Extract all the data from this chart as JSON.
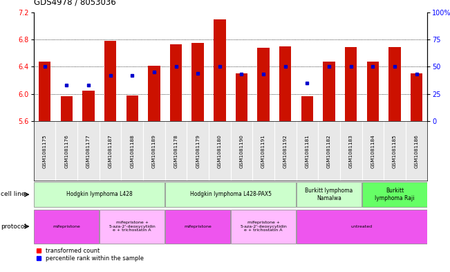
{
  "title": "GDS4978 / 8053036",
  "samples": [
    "GSM1081175",
    "GSM1081176",
    "GSM1081177",
    "GSM1081187",
    "GSM1081188",
    "GSM1081189",
    "GSM1081178",
    "GSM1081179",
    "GSM1081180",
    "GSM1081190",
    "GSM1081191",
    "GSM1081192",
    "GSM1081181",
    "GSM1081182",
    "GSM1081183",
    "GSM1081184",
    "GSM1081185",
    "GSM1081186"
  ],
  "transformed_count": [
    6.47,
    5.97,
    6.05,
    6.78,
    5.98,
    6.41,
    6.73,
    6.75,
    7.1,
    6.3,
    6.68,
    6.7,
    5.97,
    6.47,
    6.69,
    6.47,
    6.69,
    6.3
  ],
  "percentile_rank": [
    50,
    33,
    33,
    42,
    42,
    45,
    50,
    44,
    50,
    43,
    43,
    50,
    35,
    50,
    50,
    50,
    50,
    43
  ],
  "cell_line_groups": [
    {
      "label": "Hodgkin lymphoma L428",
      "start": 0,
      "end": 5,
      "color": "#ccffcc"
    },
    {
      "label": "Hodgkin lymphoma L428-PAX5",
      "start": 6,
      "end": 11,
      "color": "#ccffcc"
    },
    {
      "label": "Burkitt lymphoma\nNamalwa",
      "start": 12,
      "end": 14,
      "color": "#ccffcc"
    },
    {
      "label": "Burkitt\nlymphoma Raji",
      "start": 15,
      "end": 17,
      "color": "#66ff66"
    }
  ],
  "protocol_groups": [
    {
      "label": "mifepristone",
      "start": 0,
      "end": 2,
      "color": "#ee55ee"
    },
    {
      "label": "mifepristone +\n5-aza-2'-deoxycytidin\ne + trichostatin A",
      "start": 3,
      "end": 5,
      "color": "#ffbbff"
    },
    {
      "label": "mifepristone",
      "start": 6,
      "end": 8,
      "color": "#ee55ee"
    },
    {
      "label": "mifepristone +\n5-aza-2'-deoxycytidin\ne + trichostatin A",
      "start": 9,
      "end": 11,
      "color": "#ffbbff"
    },
    {
      "label": "untreated",
      "start": 12,
      "end": 17,
      "color": "#ee55ee"
    }
  ],
  "ylim": [
    5.6,
    7.2
  ],
  "yticks": [
    5.6,
    6.0,
    6.4,
    6.8,
    7.2
  ],
  "bar_color": "#cc1100",
  "dot_color": "#0000cc",
  "baseline": 5.6,
  "right_yticks": [
    0,
    25,
    50,
    75,
    100
  ],
  "right_yticklabels": [
    "0",
    "25",
    "50",
    "75",
    "100%"
  ],
  "grid_lines": [
    6.0,
    6.4,
    6.8
  ]
}
